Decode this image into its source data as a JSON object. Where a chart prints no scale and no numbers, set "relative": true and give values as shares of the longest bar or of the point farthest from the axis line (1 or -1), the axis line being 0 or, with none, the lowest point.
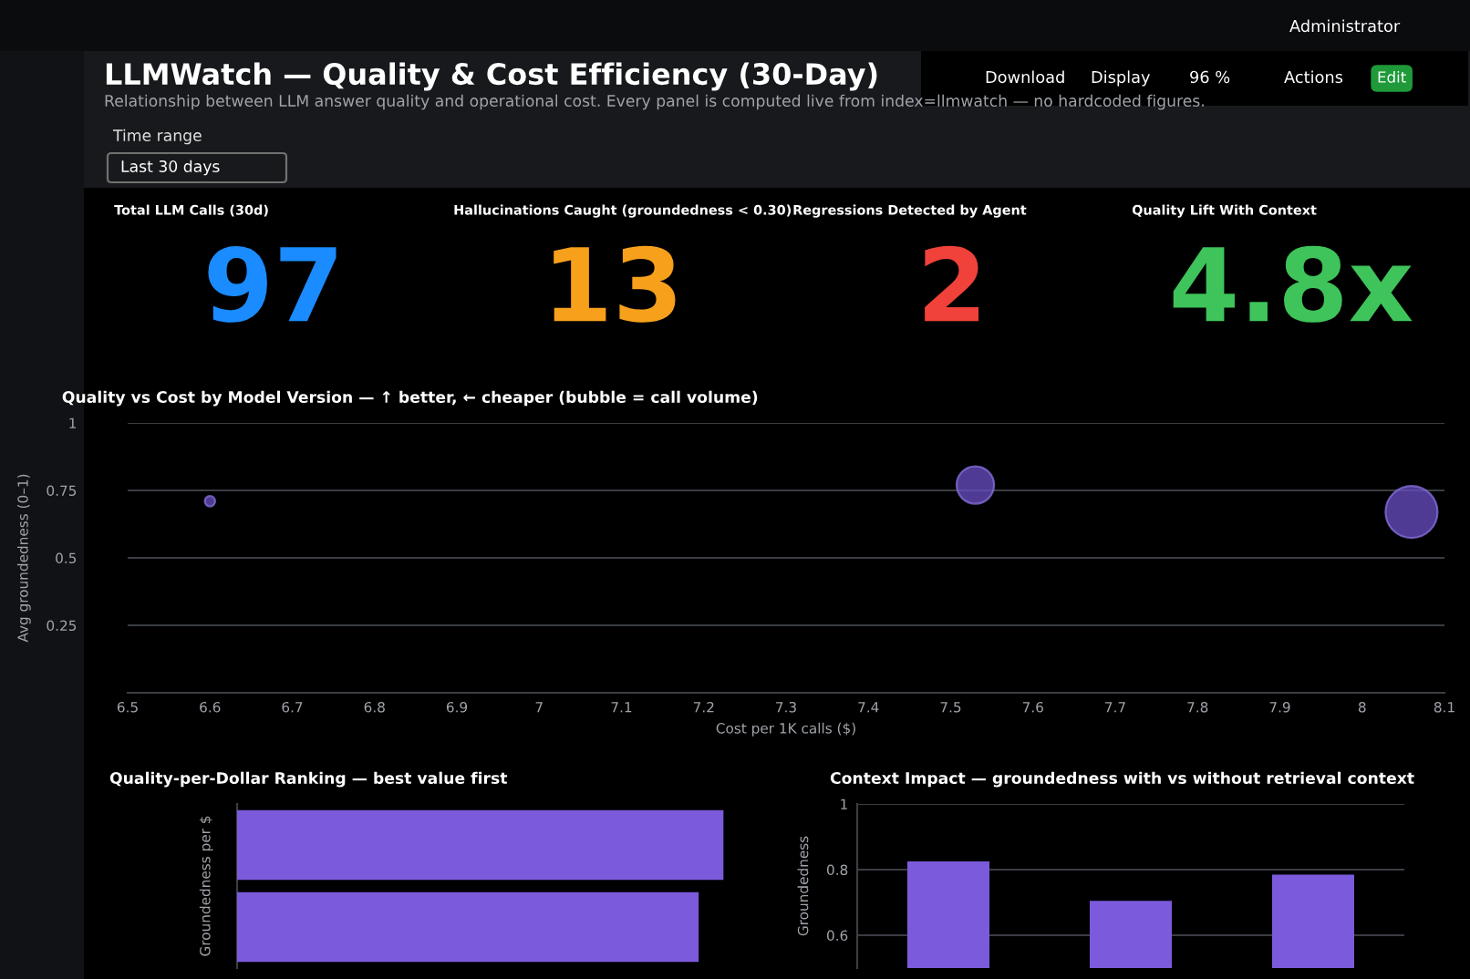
{
  "chart_data": [
    {
      "type": "other",
      "title": "LLMWatch — Quality & Cost Efficiency (30-Day)",
      "subtitle": "Relationship between LLM answer quality and operational cost. Every panel is computed live from index=llmwatch — no hardcoded figures.",
      "annotations": [
        "Time range",
        "Last 30 days",
        "Download",
        "Display",
        "96 %",
        "Actions",
        "Edit",
        "Administrator"
      ]
    },
    {
      "type": "other",
      "title": "Total LLM Calls (30d)",
      "values": [
        97
      ],
      "value_labels": [
        "97"
      ],
      "colors": [
        "#1a8cff"
      ]
    },
    {
      "type": "other",
      "title": "Hallucinations Caught (groundedness < 0.30)",
      "values": [
        13
      ],
      "value_labels": [
        "13"
      ],
      "colors": [
        "#f7a01b"
      ]
    },
    {
      "type": "other",
      "title": "Regressions Detected by Agent",
      "values": [
        2
      ],
      "value_labels": [
        "2"
      ],
      "colors": [
        "#f0423a"
      ]
    },
    {
      "type": "other",
      "title": "Quality Lift With Context",
      "values": [
        4.8
      ],
      "value_labels": [
        "4.8x"
      ],
      "colors": [
        "#3ec45a"
      ]
    },
    {
      "type": "bubble",
      "title": "Quality vs Cost by Model Version — ↑ better, ← cheaper (bubble = call volume)",
      "xlabel": "Cost per 1K calls ($)",
      "ylabel": "Avg groundedness (0–1)",
      "x": [
        6.6,
        7.53,
        8.06
      ],
      "values": [
        0.71,
        0.77,
        0.67
      ],
      "sizes": [
        0.04,
        0.52,
        1
      ],
      "color": "#6a4fc4",
      "xlim": [
        6.5,
        8.1
      ],
      "xticks": [
        6.5,
        6.6,
        6.7,
        6.8,
        6.9,
        7,
        7.1,
        7.2,
        7.3,
        7.4,
        7.5,
        7.6,
        7.7,
        7.8,
        7.9,
        8,
        8.1
      ],
      "ylim": [
        0,
        1
      ],
      "yticks": [
        {
          "value": 0,
          "label": null
        },
        0.25,
        0.5,
        0.75,
        1
      ],
      "grid": "y"
    },
    {
      "type": "bar",
      "orientation": "horizontal",
      "relative": true,
      "title": "Quality-per-Dollar Ranking — best value first",
      "ylabel": "Groundedness per $",
      "categories": [
        null,
        null
      ],
      "values": [
        1,
        0.949
      ],
      "color": "#7b5bdb"
    },
    {
      "type": "bar",
      "title": "Context Impact — groundedness with vs without retrieval context",
      "ylabel": "Groundedness",
      "categories": [
        null,
        null,
        null
      ],
      "values": [
        0.825,
        0.705,
        0.785
      ],
      "color": "#7b5bdb",
      "ylim": [
        0.5,
        1
      ],
      "yticks": [
        0.6,
        0.8,
        1
      ],
      "grid": "y"
    }
  ]
}
